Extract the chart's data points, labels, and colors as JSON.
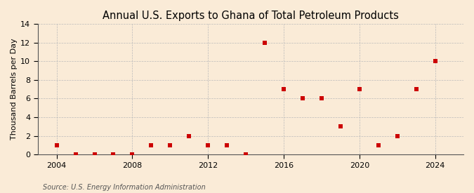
{
  "title": "Annual U.S. Exports to Ghana of Total Petroleum Products",
  "ylabel": "Thousand Barrels per Day",
  "source": "Source: U.S. Energy Information Administration",
  "years": [
    2004,
    2005,
    2006,
    2007,
    2008,
    2009,
    2010,
    2011,
    2012,
    2013,
    2014,
    2015,
    2016,
    2017,
    2018,
    2019,
    2020,
    2021,
    2022,
    2023,
    2024
  ],
  "values": [
    1,
    0,
    0,
    0,
    0,
    1,
    1,
    2,
    1,
    1,
    0,
    12,
    7,
    6,
    6,
    3,
    7,
    1,
    2,
    7,
    10
  ],
  "marker_color": "#cc0000",
  "marker_size": 4,
  "background_color": "#faebd7",
  "grid_color": "#bbbbbb",
  "ylim": [
    0,
    14
  ],
  "yticks": [
    0,
    2,
    4,
    6,
    8,
    10,
    12,
    14
  ],
  "xticks": [
    2004,
    2008,
    2012,
    2016,
    2020,
    2024
  ],
  "xlim": [
    2003.0,
    2025.5
  ],
  "title_fontsize": 10.5,
  "label_fontsize": 8,
  "tick_fontsize": 8,
  "source_fontsize": 7
}
